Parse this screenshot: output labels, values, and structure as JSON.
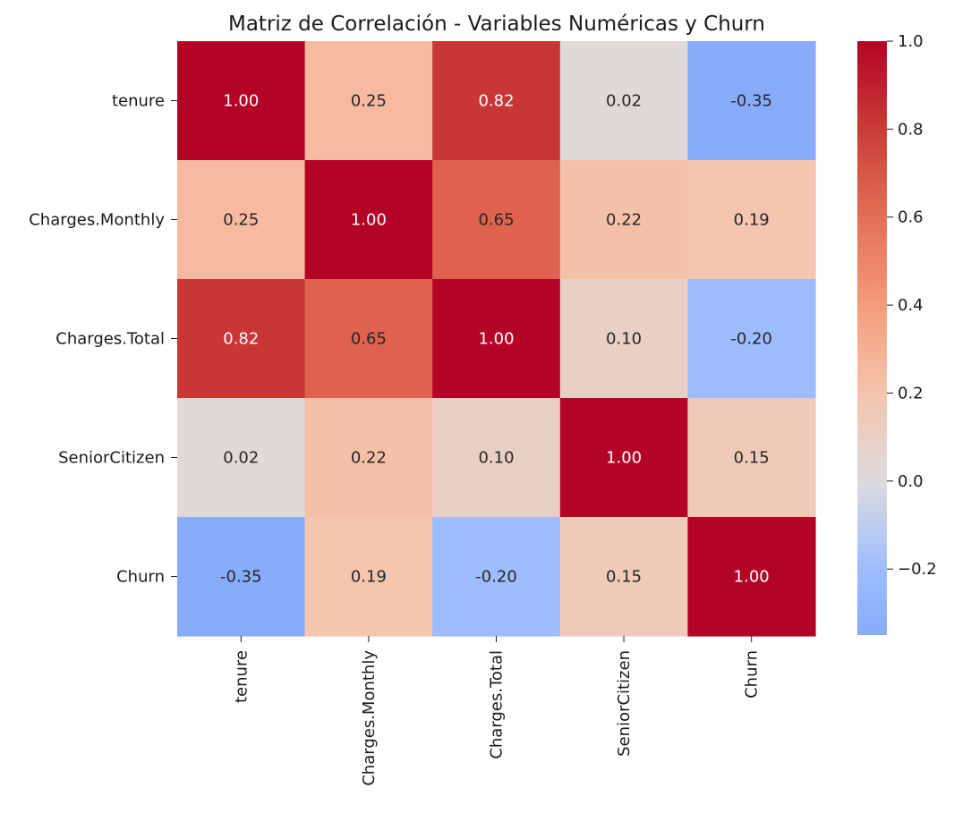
{
  "chart_data": {
    "type": "heatmap",
    "title": "Matriz de Correlación - Variables Numéricas y Churn",
    "x_categories": [
      "tenure",
      "Charges.Monthly",
      "Charges.Total",
      "SeniorCitizen",
      "Churn"
    ],
    "y_categories": [
      "tenure",
      "Charges.Monthly",
      "Charges.Total",
      "SeniorCitizen",
      "Churn"
    ],
    "values": [
      [
        1.0,
        0.25,
        0.82,
        0.02,
        -0.35
      ],
      [
        0.25,
        1.0,
        0.65,
        0.22,
        0.19
      ],
      [
        0.82,
        0.65,
        1.0,
        0.1,
        -0.2
      ],
      [
        0.02,
        0.22,
        0.1,
        1.0,
        0.15
      ],
      [
        -0.35,
        0.19,
        -0.2,
        0.15,
        1.0
      ]
    ],
    "value_labels": [
      [
        "1.00",
        "0.25",
        "0.82",
        "0.02",
        "-0.35"
      ],
      [
        "0.25",
        "1.00",
        "0.65",
        "0.22",
        "0.19"
      ],
      [
        "0.82",
        "0.65",
        "1.00",
        "0.10",
        "-0.20"
      ],
      [
        "0.02",
        "0.22",
        "0.10",
        "1.00",
        "0.15"
      ],
      [
        "-0.35",
        "0.19",
        "-0.20",
        "0.15",
        "1.00"
      ]
    ],
    "colormap": "coolwarm",
    "color_center": 0,
    "color_range": [
      -0.35,
      1.0
    ],
    "colorbar": {
      "ticks": [
        -0.2,
        0.0,
        0.2,
        0.4,
        0.6,
        0.8,
        1.0
      ],
      "tick_labels": [
        "−0.2",
        "0.0",
        "0.2",
        "0.4",
        "0.6",
        "0.8",
        "1.0"
      ]
    },
    "grid": false,
    "legend": "colorbar-right"
  }
}
